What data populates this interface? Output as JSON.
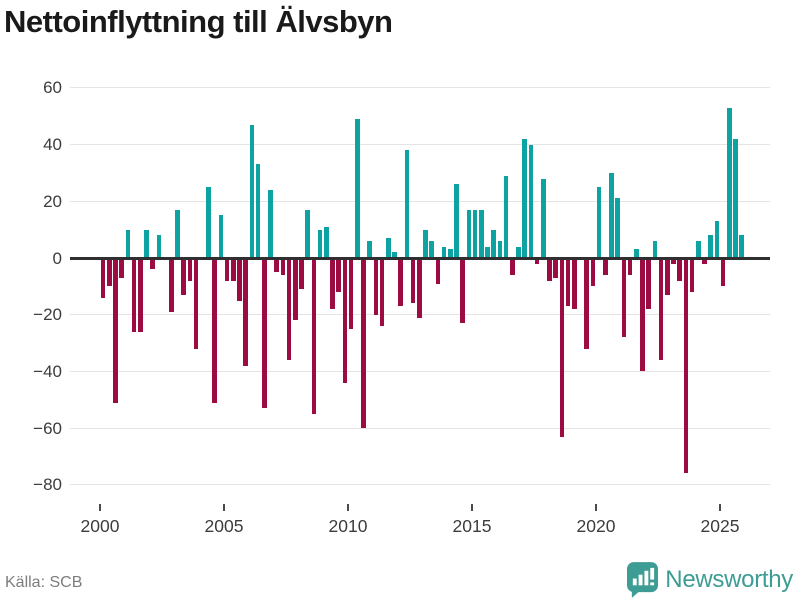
{
  "title": "Nettoinflyttning till Älvsbyn",
  "source": "Källa: SCB",
  "brand": {
    "name": "Newsworthy",
    "icon": "bar-chart-speech-bubble",
    "color": "#3d9c94"
  },
  "colors": {
    "positive_bar": "#0da3a3",
    "negative_bar": "#9c0b42",
    "zero_axis": "#2f2f2f",
    "gridline": "#e4e4e4",
    "title_text": "#1a1a1a",
    "tick_text": "#3c3c3c",
    "source_text": "#7d7d7d"
  },
  "chart_data": {
    "type": "bar",
    "title": "Nettoinflyttning till Älvsbyn",
    "frequency": "quarterly",
    "start": "2000-Q1",
    "end": "2025-Q4",
    "grid": "horizontal",
    "legend": "none",
    "ylim": [
      -80,
      60
    ],
    "y_tick_step": 20,
    "y_tick_labels": [
      "60",
      "40",
      "20",
      "0",
      "−20",
      "−40",
      "−60",
      "−80"
    ],
    "y_tick_values": [
      60,
      40,
      20,
      0,
      -20,
      -40,
      -60,
      -80
    ],
    "x_tick_labels": [
      "2000",
      "2005",
      "2010",
      "2015",
      "2020",
      "2025"
    ],
    "x_tick_years": [
      2000,
      2005,
      2010,
      2015,
      2020,
      2025
    ],
    "values": [
      -14,
      -10,
      -51,
      -7,
      10,
      -26,
      -26,
      10,
      -4,
      8,
      0,
      -19,
      17,
      -13,
      -8,
      -32,
      0,
      25,
      -51,
      15,
      -8,
      -8,
      -15,
      -38,
      47,
      33,
      -53,
      24,
      -5,
      -6,
      -36,
      -22,
      -11,
      17,
      -55,
      10,
      11,
      -18,
      -12,
      -44,
      -25,
      49,
      -60,
      6,
      -20,
      -24,
      7,
      2,
      -17,
      38,
      -16,
      -21,
      10,
      6,
      -9,
      4,
      3,
      26,
      -23,
      17,
      17,
      17,
      4,
      10,
      6,
      29,
      -6,
      4,
      42,
      40,
      -2,
      28,
      -8,
      -7,
      -63,
      -17,
      -18,
      0,
      -32,
      -10,
      25,
      -6,
      30,
      21,
      -28,
      -6,
      3,
      -40,
      -18,
      6,
      -36,
      -13,
      -2,
      -8,
      -76,
      -12,
      6,
      -2,
      8,
      13,
      -10,
      53,
      42,
      8
    ]
  }
}
